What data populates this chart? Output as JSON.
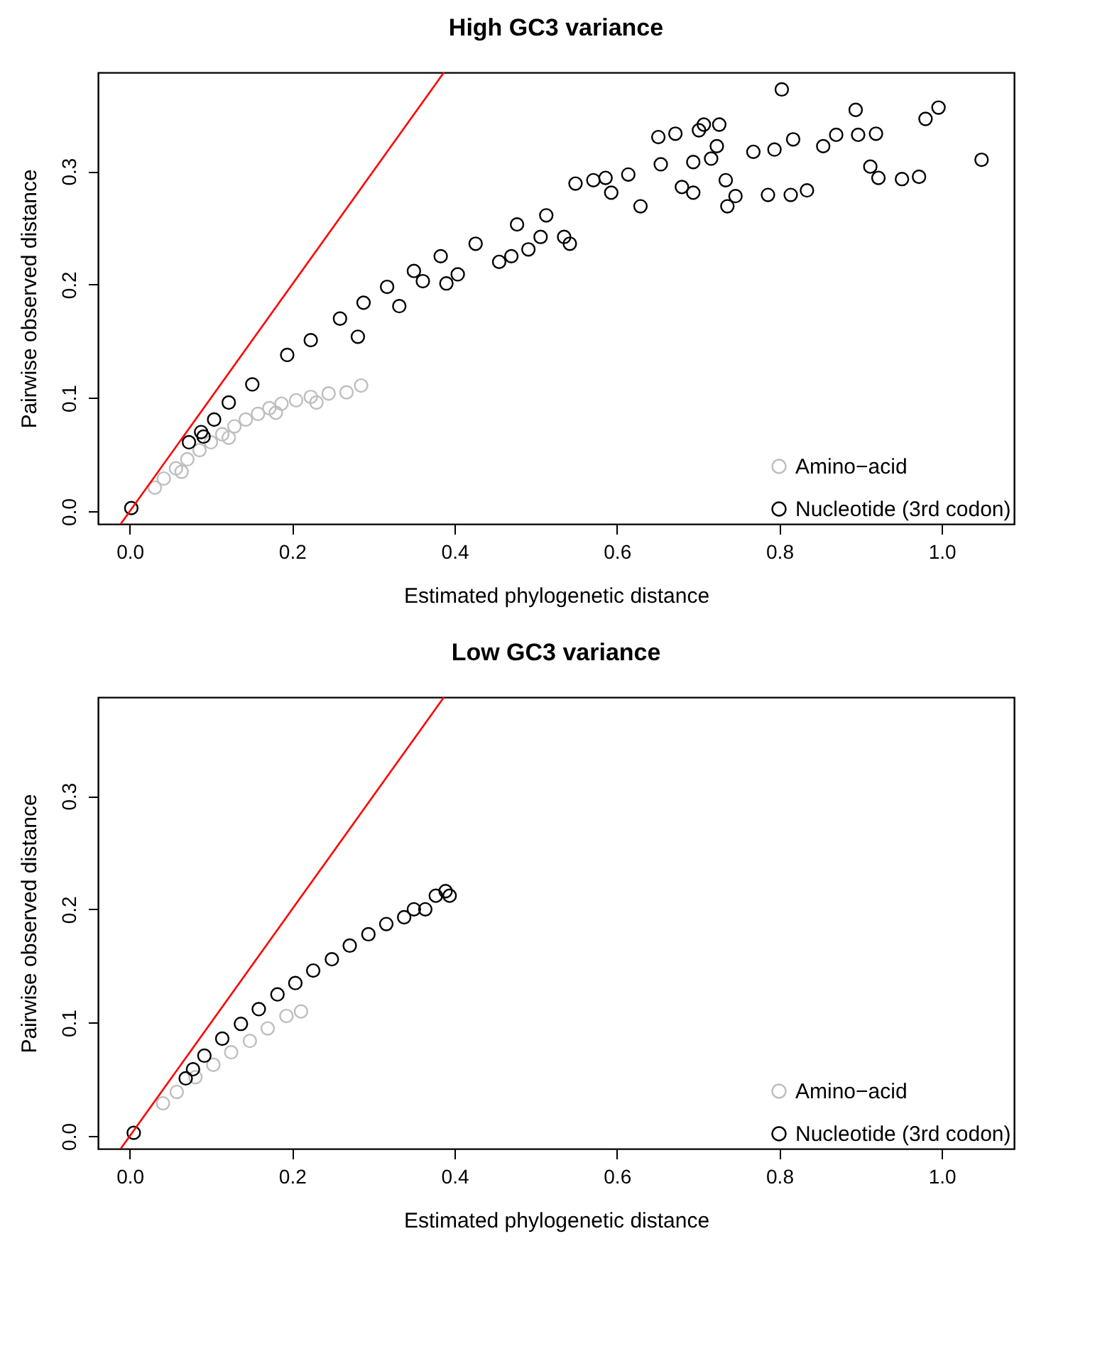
{
  "chart_data": [
    {
      "type": "scatter",
      "title": "High GC3 variance",
      "xlabel": "Estimated phylogenetic distance",
      "ylabel": "Pairwise observed distance",
      "xlim": [
        -0.039,
        1.089
      ],
      "ylim": [
        -0.011,
        0.387
      ],
      "xticks": [
        {
          "value": 0,
          "label": "0.0"
        },
        {
          "value": 0.2,
          "label": "0.2"
        },
        {
          "value": 0.4,
          "label": "0.4"
        },
        {
          "value": 0.6,
          "label": "0.6"
        },
        {
          "value": 0.8,
          "label": "0.8"
        },
        {
          "value": 1,
          "label": "1.0"
        }
      ],
      "yticks": [
        {
          "value": 0,
          "label": "0.0"
        },
        {
          "value": 0.1,
          "label": "0.1"
        },
        {
          "value": 0.2,
          "label": "0.2"
        },
        {
          "value": 0.3,
          "label": "0.3"
        }
      ],
      "grid": false,
      "legend": "bottom right",
      "marker": "circle",
      "series": [
        {
          "name": "Amino−acid",
          "color": "#bebebe",
          "x": [
            0.031,
            0.042,
            0.057,
            0.064,
            0.071,
            0.086,
            0.1,
            0.114,
            0.122,
            0.129,
            0.143,
            0.158,
            0.172,
            0.18,
            0.187,
            0.205,
            0.223,
            0.23,
            0.245,
            0.267,
            0.285
          ],
          "values": [
            0.021,
            0.029,
            0.038,
            0.035,
            0.046,
            0.054,
            0.061,
            0.068,
            0.065,
            0.075,
            0.081,
            0.086,
            0.091,
            0.087,
            0.095,
            0.098,
            0.101,
            0.096,
            0.104,
            0.105,
            0.111
          ]
        },
        {
          "name": "Nucleotide (3rd codon)",
          "color": "#000000",
          "x": [
            0.002,
            0.073,
            0.088,
            0.091,
            0.104,
            0.122,
            0.151,
            0.194,
            0.223,
            0.259,
            0.281,
            0.288,
            0.317,
            0.332,
            0.35,
            0.361,
            0.383,
            0.39,
            0.404,
            0.426,
            0.455,
            0.47,
            0.477,
            0.491,
            0.506,
            0.513,
            0.535,
            0.542,
            0.549,
            0.571,
            0.586,
            0.593,
            0.614,
            0.629,
            0.651,
            0.654,
            0.672,
            0.68,
            0.694,
            0.694,
            0.701,
            0.707,
            0.716,
            0.723,
            0.726,
            0.734,
            0.736,
            0.746,
            0.768,
            0.786,
            0.794,
            0.803,
            0.814,
            0.817,
            0.834,
            0.854,
            0.87,
            0.894,
            0.897,
            0.912,
            0.919,
            0.922,
            0.951,
            0.972,
            0.98,
            0.996,
            1.049
          ],
          "values": [
            0.003,
            0.061,
            0.07,
            0.066,
            0.081,
            0.096,
            0.112,
            0.138,
            0.151,
            0.17,
            0.154,
            0.184,
            0.198,
            0.181,
            0.212,
            0.203,
            0.225,
            0.201,
            0.209,
            0.236,
            0.22,
            0.225,
            0.253,
            0.231,
            0.242,
            0.261,
            0.242,
            0.236,
            0.289,
            0.292,
            0.294,
            0.281,
            0.297,
            0.269,
            0.33,
            0.306,
            0.333,
            0.286,
            0.281,
            0.308,
            0.336,
            0.341,
            0.311,
            0.322,
            0.341,
            0.292,
            0.269,
            0.278,
            0.317,
            0.279,
            0.319,
            0.372,
            0.279,
            0.328,
            0.283,
            0.322,
            0.332,
            0.354,
            0.332,
            0.304,
            0.333,
            0.294,
            0.293,
            0.295,
            0.346,
            0.356,
            0.31
          ]
        },
        {
          "type": "line",
          "color": "#ff0000",
          "marker": "none",
          "line_style": "solid",
          "x": [
            -0.011,
            0.387
          ],
          "values": [
            -0.011,
            0.387
          ]
        }
      ]
    },
    {
      "type": "scatter",
      "title": "Low GC3 variance",
      "xlabel": "Estimated phylogenetic distance",
      "ylabel": "Pairwise observed distance",
      "xlim": [
        -0.039,
        1.089
      ],
      "ylim": [
        -0.011,
        0.387
      ],
      "xticks": [
        {
          "value": 0,
          "label": "0.0"
        },
        {
          "value": 0.2,
          "label": "0.2"
        },
        {
          "value": 0.4,
          "label": "0.4"
        },
        {
          "value": 0.6,
          "label": "0.6"
        },
        {
          "value": 0.8,
          "label": "0.8"
        },
        {
          "value": 1,
          "label": "1.0"
        }
      ],
      "yticks": [
        {
          "value": 0,
          "label": "0.0"
        },
        {
          "value": 0.1,
          "label": "0.1"
        },
        {
          "value": 0.2,
          "label": "0.2"
        },
        {
          "value": 0.3,
          "label": "0.3"
        }
      ],
      "grid": false,
      "legend": "bottom right",
      "marker": "circle",
      "series": [
        {
          "name": "Amino−acid",
          "color": "#bebebe",
          "x": [
            0.041,
            0.058,
            0.081,
            0.103,
            0.125,
            0.148,
            0.17,
            0.193,
            0.211
          ],
          "values": [
            0.029,
            0.039,
            0.052,
            0.063,
            0.074,
            0.084,
            0.095,
            0.106,
            0.11
          ]
        },
        {
          "name": "Nucleotide (3rd codon)",
          "color": "#000000",
          "x": [
            0.005,
            0.069,
            0.078,
            0.092,
            0.114,
            0.137,
            0.159,
            0.182,
            0.204,
            0.226,
            0.249,
            0.271,
            0.294,
            0.316,
            0.338,
            0.35,
            0.364,
            0.377,
            0.389,
            0.394
          ],
          "values": [
            0.003,
            0.051,
            0.059,
            0.071,
            0.086,
            0.099,
            0.112,
            0.125,
            0.135,
            0.146,
            0.156,
            0.168,
            0.178,
            0.187,
            0.193,
            0.2,
            0.2,
            0.212,
            0.216,
            0.212
          ]
        },
        {
          "type": "line",
          "color": "#ff0000",
          "marker": "none",
          "line_style": "solid",
          "x": [
            -0.011,
            0.387
          ],
          "values": [
            -0.011,
            0.387
          ]
        }
      ]
    }
  ]
}
